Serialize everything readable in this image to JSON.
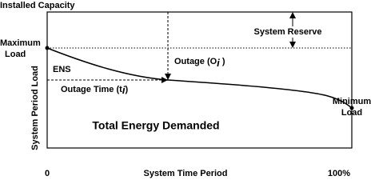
{
  "labels": {
    "installed_capacity": "Installed Capacity",
    "maximum_load": [
      "Maximum",
      "Load"
    ],
    "system_reserve": "System Reserve",
    "outage": {
      "text": "Outage (O",
      "sub": "i",
      "end": " )"
    },
    "ens": "ENS",
    "outage_time": {
      "text": "Outage Time (t",
      "sub": "i",
      "end": ")"
    },
    "minimum_load": [
      "Minimum",
      "Load"
    ],
    "total_energy": "Total Energy Demanded",
    "y_axis": "System Period Load",
    "x_start": "0",
    "x_axis": "System Time Period",
    "x_end": "100%"
  }
}
